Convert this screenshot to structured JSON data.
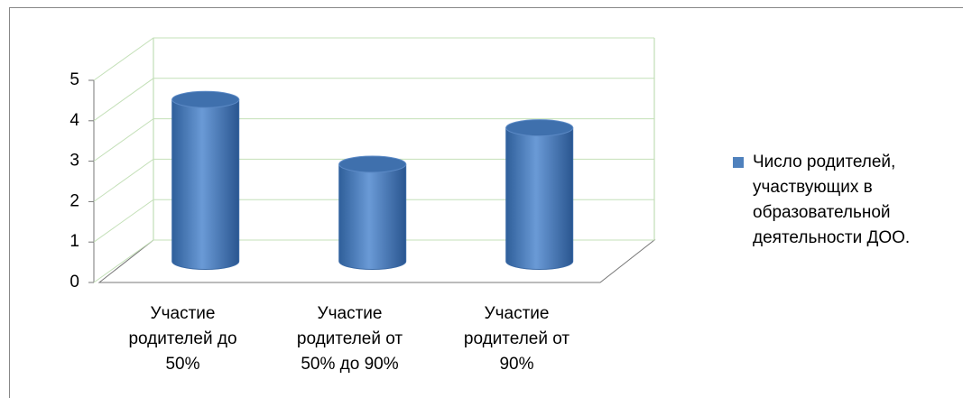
{
  "chart_data": {
    "type": "bar",
    "categories": [
      "Участие родителей до 50%",
      "Участие родителей от 50% до 90%",
      "Участие родителей от 90%"
    ],
    "series": [
      {
        "name": "Число родителей, участвующих в образовательной деятельности ДОО.",
        "color": "#4f81bd",
        "values": [
          4,
          2.4,
          3.3
        ]
      }
    ],
    "ylim": [
      0,
      5
    ],
    "yticks": [
      0,
      1,
      2,
      3,
      4,
      5
    ],
    "grid": true,
    "legend": "right"
  }
}
